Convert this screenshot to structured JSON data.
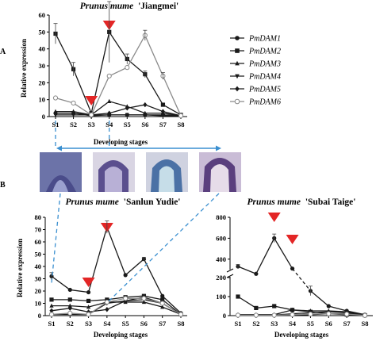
{
  "panels": {
    "a": "A",
    "b": "B"
  },
  "colors": {
    "marker_arrow": "#e32626",
    "dash_link": "#3a8fd0",
    "line": "#1a1a1a",
    "dam6_line": "#8a8a8a"
  },
  "chart_data": [
    {
      "type": "line",
      "title_species": "Prunus mume",
      "title_cultivar": "'Jiangmei'",
      "xlabel": "Developing stages",
      "ylabel": "Relative expression",
      "categories": [
        "S1",
        "S2",
        "S3",
        "S4",
        "S5",
        "S6",
        "S7",
        "S8"
      ],
      "ylim": [
        0,
        60
      ],
      "yticks": [
        0,
        10,
        20,
        30,
        40,
        50,
        60
      ],
      "legend_position": "right",
      "arrows_at": [
        "S3",
        "S4"
      ],
      "series": [
        {
          "name": "PmDAM1",
          "marker": "circle-filled",
          "values": [
            2,
            2,
            0.5,
            1,
            1,
            1,
            1,
            0.5
          ]
        },
        {
          "name": "PmDAM2",
          "marker": "square-filled",
          "values": [
            49,
            28,
            2,
            50,
            34,
            25,
            7,
            1
          ]
        },
        {
          "name": "PmDAM3",
          "marker": "triangle-up",
          "values": [
            3,
            3,
            1,
            9,
            6,
            2,
            2,
            0.5
          ]
        },
        {
          "name": "PmDAM4",
          "marker": "triangle-down",
          "values": [
            1,
            1,
            1,
            1,
            1,
            1,
            0.5,
            0.5
          ]
        },
        {
          "name": "PmDAM5",
          "marker": "diamond",
          "values": [
            2,
            2,
            1,
            2,
            5,
            7,
            3,
            0.5
          ]
        },
        {
          "name": "PmDAM6",
          "marker": "circle-open",
          "values": [
            11,
            8,
            1,
            24,
            29,
            48,
            24,
            0.5
          ]
        }
      ]
    },
    {
      "type": "line",
      "title_species": "Prunus mume",
      "title_cultivar": "'Sanlun Yudie'",
      "xlabel": "Developing stages",
      "ylabel": "Relative expression",
      "categories": [
        "S1",
        "S2",
        "S3",
        "S4",
        "S5",
        "S6",
        "S7",
        "S8"
      ],
      "ylim": [
        0,
        80
      ],
      "yticks": [
        0,
        10,
        20,
        30,
        40,
        50,
        60,
        70,
        80
      ],
      "arrows_at": [
        "S3",
        "S4"
      ],
      "series": [
        {
          "name": "PmDAM1",
          "values": [
            32,
            21,
            19,
            72,
            33,
            46,
            16,
            2
          ]
        },
        {
          "name": "PmDAM2",
          "values": [
            13,
            13,
            12,
            13,
            15,
            16,
            13,
            1
          ]
        },
        {
          "name": "PmDAM3",
          "values": [
            8,
            8,
            7,
            11,
            11,
            11,
            7,
            1
          ]
        },
        {
          "name": "PmDAM4",
          "values": [
            1,
            1,
            1,
            10,
            12,
            13,
            10,
            1
          ]
        },
        {
          "name": "PmDAM5",
          "values": [
            4,
            6,
            3,
            5,
            12,
            15,
            10,
            1
          ]
        },
        {
          "name": "PmDAM6",
          "values": [
            1,
            2,
            1,
            11,
            14,
            14,
            10,
            1
          ]
        }
      ]
    },
    {
      "type": "line",
      "title_species": "Prunus mume",
      "title_cultivar": "'Subai Taige'",
      "xlabel": "Developing stages",
      "ylabel": "",
      "categories": [
        "S1",
        "S2",
        "S3",
        "S4",
        "S5",
        "S6",
        "S7",
        "S8"
      ],
      "yaxis_break": [
        200,
        300
      ],
      "yticks_lower": [
        0,
        100,
        200
      ],
      "yticks_upper": [
        400,
        600,
        800
      ],
      "arrows_at": [
        "S3",
        "S4"
      ],
      "series": [
        {
          "name": "PmDAM1",
          "values": [
            330,
            260,
            600,
            310,
            130,
            50,
            25,
            5
          ]
        },
        {
          "name": "PmDAM2",
          "values": [
            100,
            40,
            50,
            30,
            20,
            10,
            5,
            2
          ]
        },
        {
          "name": "PmDAM3",
          "values": [
            5,
            5,
            5,
            30,
            25,
            25,
            20,
            3
          ]
        },
        {
          "name": "PmDAM4",
          "values": [
            2,
            2,
            2,
            3,
            5,
            10,
            10,
            2
          ]
        },
        {
          "name": "PmDAM5",
          "values": [
            3,
            3,
            3,
            10,
            15,
            20,
            15,
            2
          ]
        },
        {
          "name": "PmDAM6",
          "values": [
            2,
            2,
            2,
            5,
            8,
            10,
            8,
            1
          ]
        }
      ]
    }
  ]
}
